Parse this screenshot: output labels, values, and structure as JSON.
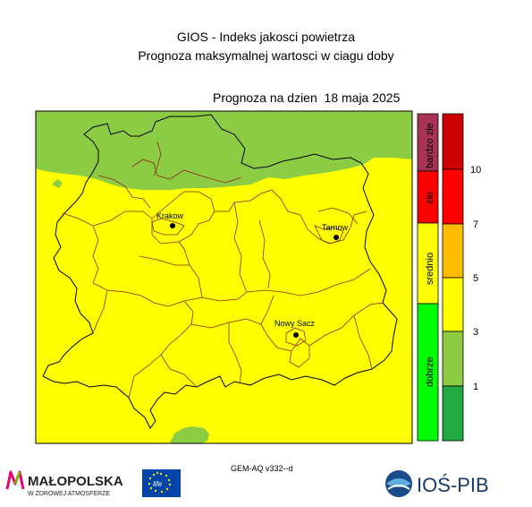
{
  "header": {
    "title": "GIOS - Indeks jakosci powietrza",
    "subtitle": "Prognoza maksymalnej wartosci w ciagu doby",
    "forecast_date": "Prognoza na dzien  18 maja 2025"
  },
  "cities": [
    {
      "name": "Krakow"
    },
    {
      "name": "Tarnow"
    },
    {
      "name": "Nowy Sacz"
    }
  ],
  "legend": {
    "categories": [
      {
        "label": "bardzo złe",
        "color": "#a83255"
      },
      {
        "label": "złe",
        "color": "#ff0000"
      },
      {
        "label": "srednio",
        "color": "#ffff00"
      },
      {
        "label": "dobrze",
        "color": "#00ff00"
      }
    ],
    "scale": {
      "colors": [
        "#cc0000",
        "#ff0000",
        "#ffbb00",
        "#ffff00",
        "#8ccc44",
        "#22aa44"
      ],
      "ticks": [
        "10",
        "7",
        "5",
        "3",
        "1"
      ]
    }
  },
  "map_colors": {
    "background": "#ffff00",
    "north_region": "#8ccc44",
    "border": "#000000",
    "districts": "#8b2a1a"
  },
  "footer": {
    "model": "GEM-AQ v332--d",
    "malopolska_name": "MAŁOPOLSKA",
    "malopolska_tagline": "W ZDROWEJ ATMOSFERZE",
    "life_label": "life",
    "ios_label": "IOŚ-PIB"
  }
}
